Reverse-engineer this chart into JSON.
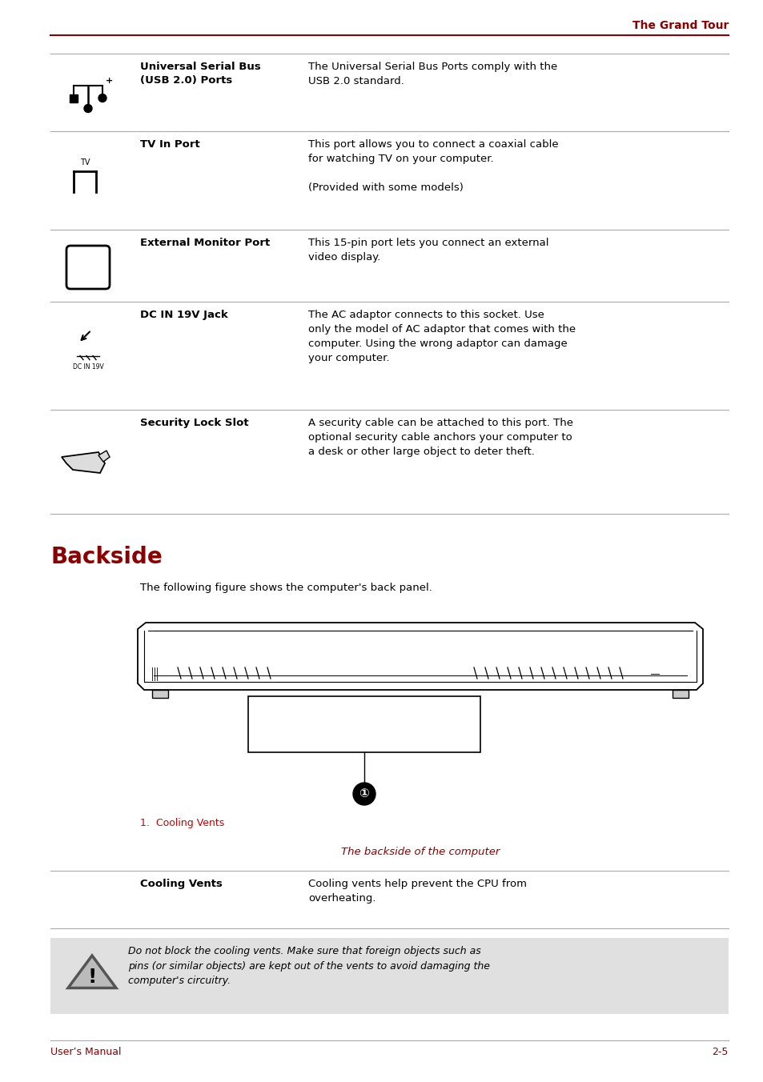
{
  "page_header_text": "The Grand Tour",
  "header_color": "#8B0000",
  "footer_left": "User’s Manual",
  "footer_right": "2-5",
  "footer_color": "#8B0000",
  "section_title": "Backside",
  "section_title_color": "#8B0000",
  "section_intro": "The following figure shows the computer's back panel.",
  "figure_caption": "The backside of the computer",
  "figure_caption_color": "#8B0000",
  "cooling_vents_label": "1.  Cooling Vents",
  "cooling_vents_label_color": "#CC0000",
  "table_rows": [
    {
      "term": "Universal Serial Bus\n(USB 2.0) Ports",
      "description": "The Universal Serial Bus Ports comply with the\nUSB 2.0 standard.",
      "icon": "usb"
    },
    {
      "term": "TV In Port",
      "description": "This port allows you to connect a coaxial cable\nfor watching TV on your computer.\n\n(Provided with some models)",
      "icon": "tv"
    },
    {
      "term": "External Monitor Port",
      "description": "This 15-pin port lets you connect an external\nvideo display.",
      "icon": "monitor"
    },
    {
      "term": "DC IN 19V Jack",
      "description": "The AC adaptor connects to this socket. Use\nonly the model of AC adaptor that comes with the\ncomputer. Using the wrong adaptor can damage\nyour computer.",
      "icon": "dc"
    },
    {
      "term": "Security Lock Slot",
      "description": "A security cable can be attached to this port. The\noptional security cable anchors your computer to\na desk or other large object to deter theft.",
      "icon": "lock"
    }
  ],
  "cooling_row": {
    "term": "Cooling Vents",
    "description": "Cooling vents help prevent the CPU from\noverheating."
  },
  "warning_text": "Do not block the cooling vents. Make sure that foreign objects such as\npins (or similar objects) are kept out of the vents to avoid damaging the\ncomputer's circuitry.",
  "warning_bg": "#E0E0E0",
  "background_color": "#FFFFFF",
  "text_color": "#000000",
  "line_color": "#AAAAAA",
  "bold_color": "#000000"
}
